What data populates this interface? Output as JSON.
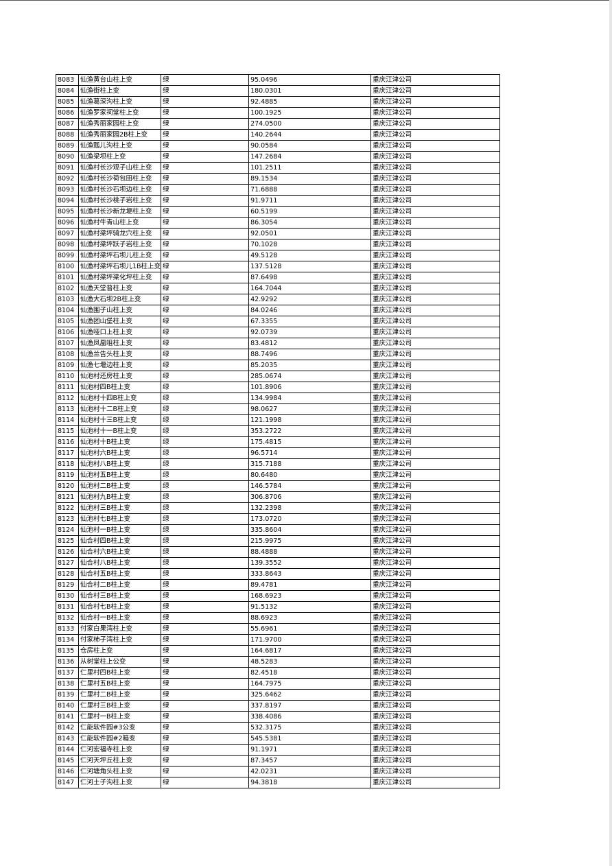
{
  "table": {
    "rows": [
      [
        "8083",
        "仙渔黄台山柱上变",
        "绿",
        "95.0496",
        "重庆江津公司"
      ],
      [
        "8084",
        "仙渔街柱上变",
        "绿",
        "180.0301",
        "重庆江津公司"
      ],
      [
        "8085",
        "仙渔葛深沟柱上变",
        "绿",
        "92.4885",
        "重庆江津公司"
      ],
      [
        "8086",
        "仙渔罗家祠堂柱上变",
        "绿",
        "100.1925",
        "重庆江津公司"
      ],
      [
        "8087",
        "仙渔秀丽家园柱上变",
        "绿",
        "274.0500",
        "重庆江津公司"
      ],
      [
        "8088",
        "仙渔秀丽家园2B柱上变",
        "绿",
        "140.2644",
        "重庆江津公司"
      ],
      [
        "8089",
        "仙渔瓢儿沟柱上变",
        "绿",
        "90.0584",
        "重庆江津公司"
      ],
      [
        "8090",
        "仙渔梁坝柱上变",
        "绿",
        "147.2684",
        "重庆江津公司"
      ],
      [
        "8091",
        "仙渔村长沙观子山柱上变",
        "绿",
        "101.2511",
        "重庆江津公司"
      ],
      [
        "8092",
        "仙渔村长沙荷包田柱上变",
        "绿",
        "89.1534",
        "重庆江津公司"
      ],
      [
        "8093",
        "仙渔村长沙石坝边柱上变",
        "绿",
        "71.6888",
        "重庆江津公司"
      ],
      [
        "8094",
        "仙渔村长沙桃子岩柱上变",
        "绿",
        "91.9711",
        "重庆江津公司"
      ],
      [
        "8095",
        "仙渔村长沙新龙埂柱上变",
        "绿",
        "60.5199",
        "重庆江津公司"
      ],
      [
        "8096",
        "仙渔村牛青山柱上变",
        "绿",
        "86.3054",
        "重庆江津公司"
      ],
      [
        "8097",
        "仙渔村梁坪骑龙穴柱上变",
        "绿",
        "92.0501",
        "重庆江津公司"
      ],
      [
        "8098",
        "仙渔村梁坪跃子岩柱上变",
        "绿",
        "70.1028",
        "重庆江津公司"
      ],
      [
        "8099",
        "仙渔村梁坪石坝儿柱上变",
        "绿",
        "49.5128",
        "重庆江津公司"
      ],
      [
        "8100",
        "仙渔村梁坪石坝儿1B柱上变",
        "绿",
        "137.5128",
        "重庆江津公司"
      ],
      [
        "8101",
        "仙渔村梁坪梁化坪柱上变",
        "绿",
        "87.6498",
        "重庆江津公司"
      ],
      [
        "8102",
        "仙渔天堂普柱上变",
        "绿",
        "164.7044",
        "重庆江津公司"
      ],
      [
        "8103",
        "仙渔大石坝2B柱上变",
        "绿",
        "42.9292",
        "重庆江津公司"
      ],
      [
        "8104",
        "仙渔围子山柱上变",
        "绿",
        "84.0246",
        "重庆江津公司"
      ],
      [
        "8105",
        "仙渔团山堡柱上变",
        "绿",
        "67.3355",
        "重庆江津公司"
      ],
      [
        "8106",
        "仙渔哑口上柱上变",
        "绿",
        "92.0739",
        "重庆江津公司"
      ],
      [
        "8107",
        "仙渔凤凰咀柱上变",
        "绿",
        "83.4812",
        "重庆江津公司"
      ],
      [
        "8108",
        "仙渔兰告头柱上变",
        "绿",
        "88.7496",
        "重庆江津公司"
      ],
      [
        "8109",
        "仙渔七堰边柱上变",
        "绿",
        "85.2035",
        "重庆江津公司"
      ],
      [
        "8110",
        "仙池村还房柱上变",
        "绿",
        "285.0674",
        "重庆江津公司"
      ],
      [
        "8111",
        "仙池村四B柱上变",
        "绿",
        "101.8906",
        "重庆江津公司"
      ],
      [
        "8112",
        "仙池村十四B柱上变",
        "绿",
        "134.9984",
        "重庆江津公司"
      ],
      [
        "8113",
        "仙池村十二B柱上变",
        "绿",
        "98.0627",
        "重庆江津公司"
      ],
      [
        "8114",
        "仙池村十三B柱上变",
        "绿",
        "121.1998",
        "重庆江津公司"
      ],
      [
        "8115",
        "仙池村十一B柱上变",
        "绿",
        "353.2722",
        "重庆江津公司"
      ],
      [
        "8116",
        "仙池村十B柱上变",
        "绿",
        "175.4815",
        "重庆江津公司"
      ],
      [
        "8117",
        "仙池村六B柱上变",
        "绿",
        "96.5714",
        "重庆江津公司"
      ],
      [
        "8118",
        "仙池村八B柱上变",
        "绿",
        "315.7188",
        "重庆江津公司"
      ],
      [
        "8119",
        "仙池村五B柱上变",
        "绿",
        "80.6480",
        "重庆江津公司"
      ],
      [
        "8120",
        "仙池村二B柱上变",
        "绿",
        "146.5784",
        "重庆江津公司"
      ],
      [
        "8121",
        "仙池村九B柱上变",
        "绿",
        "306.8706",
        "重庆江津公司"
      ],
      [
        "8122",
        "仙池村三B柱上变",
        "绿",
        "132.2398",
        "重庆江津公司"
      ],
      [
        "8123",
        "仙池村七B柱上变",
        "绿",
        "173.0720",
        "重庆江津公司"
      ],
      [
        "8124",
        "仙池村一B柱上变",
        "绿",
        "335.8604",
        "重庆江津公司"
      ],
      [
        "8125",
        "仙合村四B柱上变",
        "绿",
        "215.9975",
        "重庆江津公司"
      ],
      [
        "8126",
        "仙合村六B柱上变",
        "绿",
        "88.4888",
        "重庆江津公司"
      ],
      [
        "8127",
        "仙合村八B柱上变",
        "绿",
        "139.3552",
        "重庆江津公司"
      ],
      [
        "8128",
        "仙合村五B柱上变",
        "绿",
        "333.8643",
        "重庆江津公司"
      ],
      [
        "8129",
        "仙合村二B柱上变",
        "绿",
        "89.4781",
        "重庆江津公司"
      ],
      [
        "8130",
        "仙合村三B柱上变",
        "绿",
        "168.6923",
        "重庆江津公司"
      ],
      [
        "8131",
        "仙合村七B柱上变",
        "绿",
        "91.5132",
        "重庆江津公司"
      ],
      [
        "8132",
        "仙合村一B柱上变",
        "绿",
        "88.6923",
        "重庆江津公司"
      ],
      [
        "8133",
        "付家白果湾柱上变",
        "绿",
        "55.6961",
        "重庆江津公司"
      ],
      [
        "8134",
        "付家柿子湾柱上变",
        "绿",
        "171.9700",
        "重庆江津公司"
      ],
      [
        "8135",
        "仓房柱上变",
        "绿",
        "164.6817",
        "重庆江津公司"
      ],
      [
        "8136",
        "从树堂柱上公变",
        "绿",
        "48.5283",
        "重庆江津公司"
      ],
      [
        "8137",
        "仁里村四B柱上变",
        "绿",
        "82.4518",
        "重庆江津公司"
      ],
      [
        "8138",
        "仁里村五B柱上变",
        "绿",
        "164.7975",
        "重庆江津公司"
      ],
      [
        "8139",
        "仁里村二B柱上变",
        "绿",
        "325.6462",
        "重庆江津公司"
      ],
      [
        "8140",
        "仁里村三B柱上变",
        "绿",
        "337.8197",
        "重庆江津公司"
      ],
      [
        "8141",
        "仁里村一B柱上变",
        "绿",
        "338.4086",
        "重庆江津公司"
      ],
      [
        "8142",
        "仁能软件园#3公变",
        "绿",
        "532.3175",
        "重庆江津公司"
      ],
      [
        "8143",
        "仁能软件园#2箱变",
        "绿",
        "545.5381",
        "重庆江津公司"
      ],
      [
        "8144",
        "仁河宏福寺柱上变",
        "绿",
        "91.1971",
        "重庆江津公司"
      ],
      [
        "8145",
        "仁河天坪丘柱上变",
        "绿",
        "87.3457",
        "重庆江津公司"
      ],
      [
        "8146",
        "仁河塘角头柱上变",
        "绿",
        "42.0231",
        "重庆江津公司"
      ],
      [
        "8147",
        "仁河土子沟柱上变",
        "绿",
        "94.3818",
        "重庆江津公司"
      ]
    ]
  }
}
